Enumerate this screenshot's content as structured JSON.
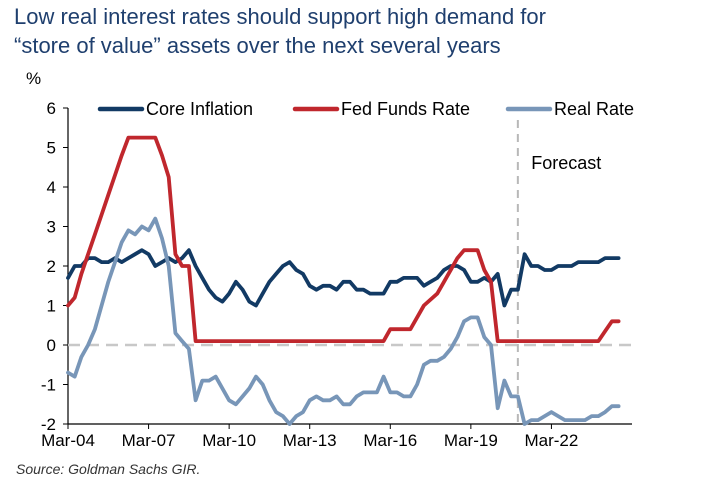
{
  "title_lines": [
    "Low real interest rates should support high demand for",
    "“store of value” assets over the next several years"
  ],
  "source": "Source: Goldman Sachs GIR.",
  "chart_data": {
    "type": "line",
    "title": "Low real interest rates should support high demand for “store of value” assets over the next several years",
    "ylabel": "%",
    "ylim": [
      -2,
      6
    ],
    "yticks": [
      -2,
      -1,
      0,
      1,
      2,
      3,
      4,
      5,
      6
    ],
    "xlim": [
      "2004-03",
      "2025-03"
    ],
    "xticks": [
      {
        "value": "2004-03",
        "label": "Mar-04"
      },
      {
        "value": "2007-03",
        "label": "Mar-07"
      },
      {
        "value": "2010-03",
        "label": "Mar-10"
      },
      {
        "value": "2013-03",
        "label": "Mar-13"
      },
      {
        "value": "2016-03",
        "label": "Mar-16"
      },
      {
        "value": "2019-03",
        "label": "Mar-19"
      },
      {
        "value": "2022-03",
        "label": "Mar-22"
      }
    ],
    "zero_line": true,
    "forecast_start": "2020-12",
    "annotations": [
      {
        "text": "Forecast",
        "x": "2021-06",
        "y": 4.45
      }
    ],
    "legend_position": "top",
    "series": [
      {
        "name": "Core Inflation",
        "color": "#123a64",
        "points": [
          [
            "2004-03",
            1.7
          ],
          [
            "2004-06",
            2.0
          ],
          [
            "2004-09",
            2.0
          ],
          [
            "2004-12",
            2.2
          ],
          [
            "2005-03",
            2.2
          ],
          [
            "2005-06",
            2.1
          ],
          [
            "2005-09",
            2.1
          ],
          [
            "2005-12",
            2.2
          ],
          [
            "2006-03",
            2.1
          ],
          [
            "2006-06",
            2.2
          ],
          [
            "2006-09",
            2.3
          ],
          [
            "2006-12",
            2.4
          ],
          [
            "2007-03",
            2.3
          ],
          [
            "2007-06",
            2.0
          ],
          [
            "2007-09",
            2.1
          ],
          [
            "2007-12",
            2.2
          ],
          [
            "2008-03",
            2.1
          ],
          [
            "2008-06",
            2.2
          ],
          [
            "2008-09",
            2.4
          ],
          [
            "2008-12",
            2.0
          ],
          [
            "2009-03",
            1.7
          ],
          [
            "2009-06",
            1.4
          ],
          [
            "2009-09",
            1.2
          ],
          [
            "2009-12",
            1.1
          ],
          [
            "2010-03",
            1.3
          ],
          [
            "2010-06",
            1.6
          ],
          [
            "2010-09",
            1.4
          ],
          [
            "2010-12",
            1.1
          ],
          [
            "2011-03",
            1.0
          ],
          [
            "2011-06",
            1.3
          ],
          [
            "2011-09",
            1.6
          ],
          [
            "2011-12",
            1.8
          ],
          [
            "2012-03",
            2.0
          ],
          [
            "2012-06",
            2.1
          ],
          [
            "2012-09",
            1.9
          ],
          [
            "2012-12",
            1.8
          ],
          [
            "2013-03",
            1.5
          ],
          [
            "2013-06",
            1.4
          ],
          [
            "2013-09",
            1.5
          ],
          [
            "2013-12",
            1.5
          ],
          [
            "2014-03",
            1.4
          ],
          [
            "2014-06",
            1.6
          ],
          [
            "2014-09",
            1.6
          ],
          [
            "2014-12",
            1.4
          ],
          [
            "2015-03",
            1.4
          ],
          [
            "2015-06",
            1.3
          ],
          [
            "2015-09",
            1.3
          ],
          [
            "2015-12",
            1.3
          ],
          [
            "2016-03",
            1.6
          ],
          [
            "2016-06",
            1.6
          ],
          [
            "2016-09",
            1.7
          ],
          [
            "2016-12",
            1.7
          ],
          [
            "2017-03",
            1.7
          ],
          [
            "2017-06",
            1.5
          ],
          [
            "2017-09",
            1.6
          ],
          [
            "2017-12",
            1.7
          ],
          [
            "2018-03",
            1.9
          ],
          [
            "2018-06",
            2.0
          ],
          [
            "2018-09",
            2.0
          ],
          [
            "2018-12",
            1.9
          ],
          [
            "2019-03",
            1.6
          ],
          [
            "2019-06",
            1.6
          ],
          [
            "2019-09",
            1.7
          ],
          [
            "2019-12",
            1.6
          ],
          [
            "2020-03",
            1.8
          ],
          [
            "2020-06",
            1.0
          ],
          [
            "2020-09",
            1.4
          ],
          [
            "2020-12",
            1.4
          ],
          [
            "2021-03",
            2.3
          ],
          [
            "2021-06",
            2.0
          ],
          [
            "2021-09",
            2.0
          ],
          [
            "2021-12",
            1.9
          ],
          [
            "2022-03",
            1.9
          ],
          [
            "2022-06",
            2.0
          ],
          [
            "2022-09",
            2.0
          ],
          [
            "2022-12",
            2.0
          ],
          [
            "2023-03",
            2.1
          ],
          [
            "2023-06",
            2.1
          ],
          [
            "2023-09",
            2.1
          ],
          [
            "2023-12",
            2.1
          ],
          [
            "2024-03",
            2.2
          ],
          [
            "2024-06",
            2.2
          ],
          [
            "2024-09",
            2.2
          ]
        ]
      },
      {
        "name": "Fed Funds Rate",
        "color": "#c0272d",
        "points": [
          [
            "2004-03",
            1.0
          ],
          [
            "2004-06",
            1.2
          ],
          [
            "2004-09",
            1.8
          ],
          [
            "2004-12",
            2.3
          ],
          [
            "2005-03",
            2.8
          ],
          [
            "2005-06",
            3.3
          ],
          [
            "2005-09",
            3.8
          ],
          [
            "2005-12",
            4.3
          ],
          [
            "2006-03",
            4.8
          ],
          [
            "2006-06",
            5.25
          ],
          [
            "2006-09",
            5.25
          ],
          [
            "2006-12",
            5.25
          ],
          [
            "2007-03",
            5.25
          ],
          [
            "2007-06",
            5.25
          ],
          [
            "2007-09",
            4.8
          ],
          [
            "2007-12",
            4.25
          ],
          [
            "2008-03",
            2.3
          ],
          [
            "2008-06",
            2.0
          ],
          [
            "2008-09",
            2.0
          ],
          [
            "2008-12",
            0.1
          ],
          [
            "2011-12",
            0.1
          ],
          [
            "2015-12",
            0.1
          ],
          [
            "2016-03",
            0.4
          ],
          [
            "2016-12",
            0.4
          ],
          [
            "2017-03",
            0.7
          ],
          [
            "2017-06",
            1.0
          ],
          [
            "2017-12",
            1.3
          ],
          [
            "2018-03",
            1.6
          ],
          [
            "2018-06",
            1.9
          ],
          [
            "2018-09",
            2.2
          ],
          [
            "2018-12",
            2.4
          ],
          [
            "2019-06",
            2.4
          ],
          [
            "2019-09",
            1.9
          ],
          [
            "2019-12",
            1.6
          ],
          [
            "2020-03",
            0.1
          ],
          [
            "2021-06",
            0.1
          ],
          [
            "2023-12",
            0.1
          ],
          [
            "2024-03",
            0.35
          ],
          [
            "2024-06",
            0.6
          ],
          [
            "2024-09",
            0.6
          ]
        ]
      },
      {
        "name": "Real Rate",
        "color": "#7896b8",
        "points": [
          [
            "2004-03",
            -0.7
          ],
          [
            "2004-06",
            -0.8
          ],
          [
            "2004-09",
            -0.3
          ],
          [
            "2004-12",
            0.0
          ],
          [
            "2005-03",
            0.4
          ],
          [
            "2005-06",
            1.0
          ],
          [
            "2005-09",
            1.6
          ],
          [
            "2005-12",
            2.1
          ],
          [
            "2006-03",
            2.6
          ],
          [
            "2006-06",
            2.9
          ],
          [
            "2006-09",
            2.8
          ],
          [
            "2006-12",
            3.0
          ],
          [
            "2007-03",
            2.9
          ],
          [
            "2007-06",
            3.2
          ],
          [
            "2007-09",
            2.7
          ],
          [
            "2007-12",
            2.0
          ],
          [
            "2008-03",
            0.3
          ],
          [
            "2008-06",
            0.1
          ],
          [
            "2008-09",
            -0.1
          ],
          [
            "2008-12",
            -1.4
          ],
          [
            "2009-03",
            -0.9
          ],
          [
            "2009-06",
            -0.9
          ],
          [
            "2009-09",
            -0.8
          ],
          [
            "2009-12",
            -1.1
          ],
          [
            "2010-03",
            -1.4
          ],
          [
            "2010-06",
            -1.5
          ],
          [
            "2010-09",
            -1.3
          ],
          [
            "2010-12",
            -1.1
          ],
          [
            "2011-03",
            -0.8
          ],
          [
            "2011-06",
            -1.0
          ],
          [
            "2011-09",
            -1.4
          ],
          [
            "2011-12",
            -1.7
          ],
          [
            "2012-03",
            -1.8
          ],
          [
            "2012-06",
            -2.0
          ],
          [
            "2012-09",
            -1.8
          ],
          [
            "2012-12",
            -1.7
          ],
          [
            "2013-03",
            -1.4
          ],
          [
            "2013-06",
            -1.3
          ],
          [
            "2013-09",
            -1.4
          ],
          [
            "2013-12",
            -1.4
          ],
          [
            "2014-03",
            -1.3
          ],
          [
            "2014-06",
            -1.5
          ],
          [
            "2014-09",
            -1.5
          ],
          [
            "2014-12",
            -1.3
          ],
          [
            "2015-03",
            -1.2
          ],
          [
            "2015-06",
            -1.2
          ],
          [
            "2015-09",
            -1.2
          ],
          [
            "2015-12",
            -0.8
          ],
          [
            "2016-03",
            -1.2
          ],
          [
            "2016-06",
            -1.2
          ],
          [
            "2016-09",
            -1.3
          ],
          [
            "2016-12",
            -1.3
          ],
          [
            "2017-03",
            -1.0
          ],
          [
            "2017-06",
            -0.5
          ],
          [
            "2017-09",
            -0.4
          ],
          [
            "2017-12",
            -0.4
          ],
          [
            "2018-03",
            -0.3
          ],
          [
            "2018-06",
            -0.1
          ],
          [
            "2018-09",
            0.2
          ],
          [
            "2018-12",
            0.6
          ],
          [
            "2019-03",
            0.7
          ],
          [
            "2019-06",
            0.7
          ],
          [
            "2019-09",
            0.2
          ],
          [
            "2019-12",
            0.0
          ],
          [
            "2020-03",
            -1.6
          ],
          [
            "2020-06",
            -0.9
          ],
          [
            "2020-09",
            -1.3
          ],
          [
            "2020-12",
            -1.3
          ],
          [
            "2021-03",
            -2.0
          ],
          [
            "2021-06",
            -1.9
          ],
          [
            "2021-09",
            -1.9
          ],
          [
            "2021-12",
            -1.8
          ],
          [
            "2022-03",
            -1.7
          ],
          [
            "2022-06",
            -1.8
          ],
          [
            "2022-09",
            -1.9
          ],
          [
            "2022-12",
            -1.9
          ],
          [
            "2023-03",
            -1.9
          ],
          [
            "2023-06",
            -1.9
          ],
          [
            "2023-09",
            -1.8
          ],
          [
            "2023-12",
            -1.8
          ],
          [
            "2024-03",
            -1.7
          ],
          [
            "2024-06",
            -1.55
          ],
          [
            "2024-09",
            -1.55
          ]
        ]
      }
    ]
  }
}
